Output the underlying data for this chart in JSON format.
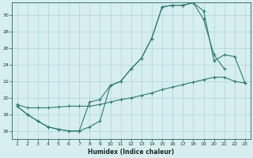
{
  "xlabel": "Humidex (Indice chaleur)",
  "bg_color": "#d6eef0",
  "grid_color": "#aed4d8",
  "line_color": "#2e7b6e",
  "xlim": [
    0.5,
    23.5
  ],
  "ylim": [
    15.0,
    31.5
  ],
  "yticks": [
    16,
    18,
    20,
    22,
    24,
    26,
    28,
    30
  ],
  "xticks": [
    1,
    2,
    3,
    4,
    5,
    6,
    7,
    8,
    9,
    10,
    11,
    12,
    13,
    14,
    15,
    16,
    17,
    18,
    19,
    20,
    21,
    22,
    23
  ],
  "line1_x": [
    1,
    2,
    3,
    4,
    5,
    6,
    7,
    8,
    9,
    10,
    11,
    12,
    13,
    14,
    15,
    16,
    17,
    18,
    19,
    20,
    21
  ],
  "line1_y": [
    19.0,
    18.0,
    17.2,
    16.5,
    16.2,
    16.0,
    16.0,
    19.5,
    19.8,
    21.5,
    22.0,
    23.5,
    24.8,
    27.2,
    31.0,
    31.2,
    31.2,
    31.5,
    29.5,
    25.2,
    23.5
  ],
  "line2_x": [
    1,
    2,
    3,
    4,
    5,
    6,
    7,
    8,
    9,
    10,
    11,
    12,
    13,
    14,
    15,
    16,
    17,
    18,
    19,
    20,
    21,
    22,
    23
  ],
  "line2_y": [
    19.0,
    18.0,
    17.2,
    16.5,
    16.2,
    16.0,
    16.0,
    16.5,
    17.2,
    21.5,
    22.0,
    23.5,
    24.8,
    27.2,
    31.0,
    31.2,
    31.2,
    31.5,
    30.5,
    24.5,
    25.2,
    25.0,
    21.8
  ],
  "line3_x": [
    1,
    2,
    3,
    4,
    5,
    6,
    7,
    8,
    9,
    10,
    11,
    12,
    13,
    14,
    15,
    16,
    17,
    18,
    19,
    20,
    21,
    22,
    23
  ],
  "line3_y": [
    19.2,
    18.8,
    18.8,
    18.8,
    18.9,
    19.0,
    19.0,
    19.0,
    19.2,
    19.5,
    19.8,
    20.0,
    20.3,
    20.6,
    21.0,
    21.3,
    21.6,
    21.9,
    22.2,
    22.5,
    22.5,
    22.0,
    21.8
  ]
}
